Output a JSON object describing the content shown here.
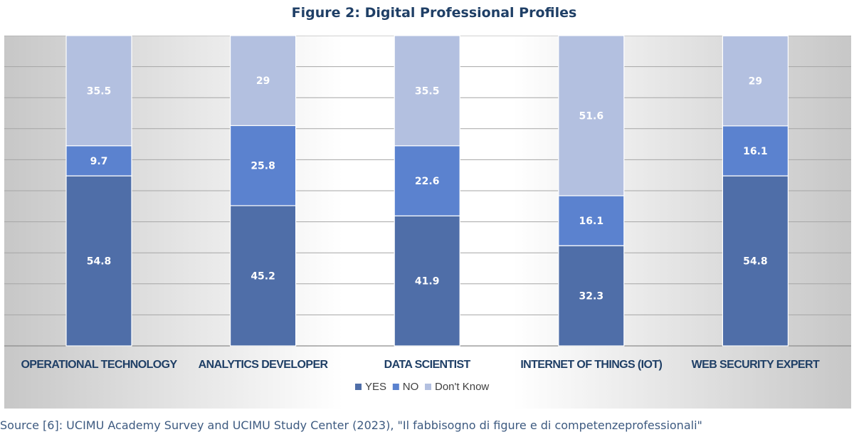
{
  "figure_title": "Figure 2: Digital Professional Profiles",
  "source_note": "Source [6]: UCIMU Academy Survey and UCIMU Study Center (2023), \"Il fabbisogno di figure e di competenzeprofessionali\"",
  "colors": {
    "yes": "#4f6ea8",
    "no": "#5b82cf",
    "dont_know": "#b3c0e0",
    "category_label": "#1f3f66",
    "background_gradient_dark": "#c7c7c7",
    "background_gradient_light": "#ffffff"
  },
  "chart_data": {
    "type": "bar",
    "stacked": true,
    "orientation": "vertical",
    "categories": [
      "OPERATIONAL TECHNOLOGY",
      "ANALYTICS DEVELOPER",
      "DATA SCIENTIST",
      "INTERNET OF THINGS (IOT)",
      "WEB SECURITY EXPERT"
    ],
    "series": [
      {
        "name": "YES",
        "values": [
          54.8,
          45.2,
          41.9,
          32.3,
          54.8
        ],
        "color": "#4f6ea8"
      },
      {
        "name": "NO",
        "values": [
          9.7,
          25.8,
          22.6,
          16.1,
          16.1
        ],
        "color": "#5b82cf"
      },
      {
        "name": "Don't Know",
        "values": [
          35.5,
          29,
          35.5,
          51.6,
          29
        ],
        "color": "#b3c0e0"
      }
    ],
    "ylim": [
      0,
      100
    ],
    "grid": true,
    "legend": "bottom-center",
    "data_labels": true
  }
}
